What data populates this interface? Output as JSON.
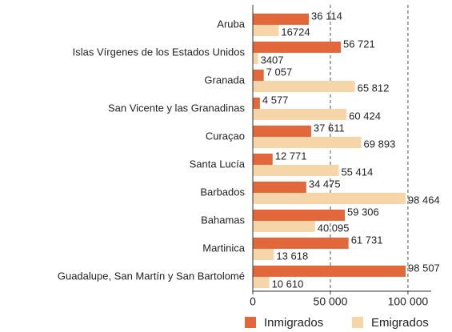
{
  "chart_data": {
    "type": "bar",
    "orientation": "horizontal",
    "categories": [
      "Aruba",
      "Islas Vírgenes de los Estados Unidos",
      "Granada",
      "San Vicente y las Granadinas",
      "Curaçao",
      "Santa Lucía",
      "Barbados",
      "Bahamas",
      "Martinica",
      "Guadalupe, San Martín y San Bartolomé"
    ],
    "series": [
      {
        "name": "Inmigrados",
        "color": "#e2683b",
        "values": [
          36114,
          56721,
          7057,
          4577,
          37611,
          12771,
          34475,
          59306,
          61731,
          98507
        ],
        "value_labels": [
          "36 114",
          "56 721",
          "7 057",
          "4 577",
          "37 611",
          "12 771",
          "34 475",
          "59 306",
          "61 731",
          "98 507"
        ]
      },
      {
        "name": "Emigrados",
        "color": "#f6d5a8",
        "values": [
          16724,
          3407,
          65812,
          60424,
          69893,
          55414,
          98464,
          40095,
          13618,
          10610
        ],
        "value_labels": [
          "16724",
          "3407",
          "65 812",
          "60 424",
          "69 893",
          "55 414",
          "98 464",
          "40 095",
          "13 618",
          "10 610"
        ]
      }
    ],
    "xlim": [
      0,
      115000
    ],
    "xticks": [
      0,
      {
        "value": 50000,
        "label": "50 000"
      },
      {
        "value": 100000,
        "label": "100 000"
      }
    ],
    "grid": true,
    "legend": "bottom"
  }
}
